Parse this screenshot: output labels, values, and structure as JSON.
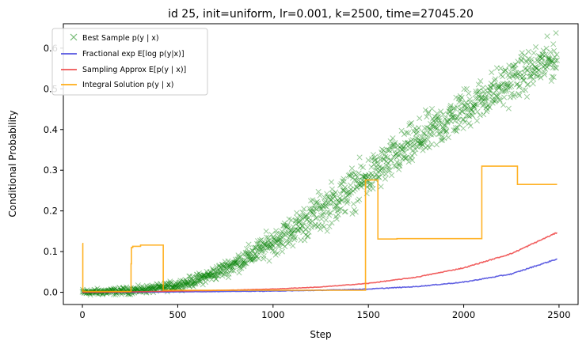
{
  "chart_data": {
    "type": "line",
    "title": "id 25, init=uniform, lr=0.001, k=2500, time=27045.20",
    "xlabel": "Step",
    "ylabel": "Conditional Probability",
    "xlim": [
      -100,
      2600
    ],
    "ylim": [
      -0.03,
      0.66
    ],
    "xticks": [
      0,
      500,
      1000,
      1500,
      2000,
      2500
    ],
    "yticks": [
      0.0,
      0.1,
      0.2,
      0.3,
      0.4,
      0.5,
      0.6
    ],
    "grid": false,
    "legend_position": "top-left",
    "series": [
      {
        "name": "Best Sample p(y | x)",
        "kind": "scatter-x",
        "color": "#008000",
        "x": [
          0,
          100,
          200,
          300,
          400,
          500,
          600,
          700,
          800,
          900,
          1000,
          1100,
          1200,
          1300,
          1400,
          1500,
          1600,
          1700,
          1800,
          1900,
          2000,
          2100,
          2200,
          2300,
          2400,
          2490
        ],
        "y": [
          0.0,
          0.001,
          0.003,
          0.006,
          0.01,
          0.018,
          0.03,
          0.048,
          0.07,
          0.095,
          0.123,
          0.152,
          0.183,
          0.215,
          0.248,
          0.283,
          0.318,
          0.352,
          0.385,
          0.417,
          0.448,
          0.477,
          0.505,
          0.532,
          0.557,
          0.578
        ],
        "noise": 0.025
      },
      {
        "name": "Fractional exp E[log p(y|x)]",
        "kind": "line",
        "color": "#4444dd",
        "x": [
          0,
          250,
          500,
          750,
          1000,
          1250,
          1500,
          1750,
          2000,
          2250,
          2490
        ],
        "y": [
          0.0,
          0.0,
          0.001,
          0.002,
          0.003,
          0.005,
          0.008,
          0.014,
          0.025,
          0.045,
          0.082
        ]
      },
      {
        "name": "Sampling Approx E[p(y | x)]",
        "kind": "line",
        "color": "#ee4444",
        "x": [
          0,
          250,
          500,
          750,
          1000,
          1250,
          1500,
          1750,
          2000,
          2250,
          2490
        ],
        "y": [
          0.0,
          0.001,
          0.003,
          0.005,
          0.008,
          0.013,
          0.022,
          0.037,
          0.06,
          0.095,
          0.147
        ]
      },
      {
        "name": "Integral Solution p(y | x)",
        "kind": "step",
        "color": "#ffa500",
        "x": [
          0,
          2,
          10,
          255,
          257,
          262,
          264,
          300,
          305,
          420,
          424,
          1480,
          1485,
          1545,
          1550,
          1650,
          2090,
          2095,
          2280,
          2282,
          2490
        ],
        "y": [
          0.12,
          0.003,
          0.002,
          0.07,
          0.11,
          0.11,
          0.113,
          0.113,
          0.116,
          0.116,
          0.005,
          0.005,
          0.276,
          0.276,
          0.131,
          0.132,
          0.132,
          0.31,
          0.31,
          0.265,
          0.265
        ]
      }
    ]
  }
}
